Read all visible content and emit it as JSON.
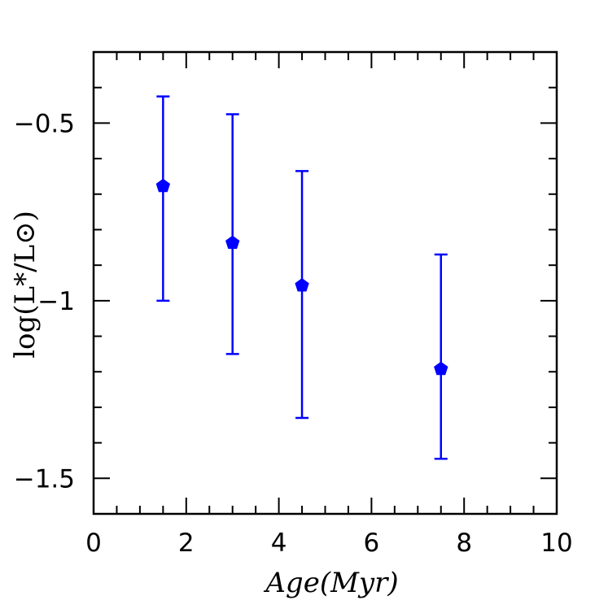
{
  "chart_data": {
    "type": "scatter",
    "title": "",
    "xlabel": "Age(Myr)",
    "ylabel": "log(L*/L⊙)",
    "xlim": [
      0,
      10
    ],
    "ylim": [
      -1.6,
      -0.3
    ],
    "x_ticks": [
      0,
      2,
      4,
      6,
      8,
      10
    ],
    "x_tick_labels": [
      "0",
      "2",
      "4",
      "6",
      "8",
      "10"
    ],
    "y_ticks": [
      -0.5,
      -1,
      -1.5
    ],
    "y_tick_labels": [
      "−0.5",
      "−1",
      "−1.5"
    ],
    "x_minor_step": 0.5,
    "y_minor_step": 0.1,
    "grid": false,
    "series": [
      {
        "name": "",
        "marker": "pentagon",
        "color": "#0000ff",
        "points": [
          {
            "x": 1.5,
            "y": -0.675,
            "y_low": -1.0,
            "y_high": -0.425
          },
          {
            "x": 3.0,
            "y": -0.835,
            "y_low": -1.15,
            "y_high": -0.475
          },
          {
            "x": 4.5,
            "y": -0.955,
            "y_low": -1.33,
            "y_high": -0.635
          },
          {
            "x": 7.5,
            "y": -1.19,
            "y_low": -1.445,
            "y_high": -0.87
          }
        ]
      }
    ]
  }
}
